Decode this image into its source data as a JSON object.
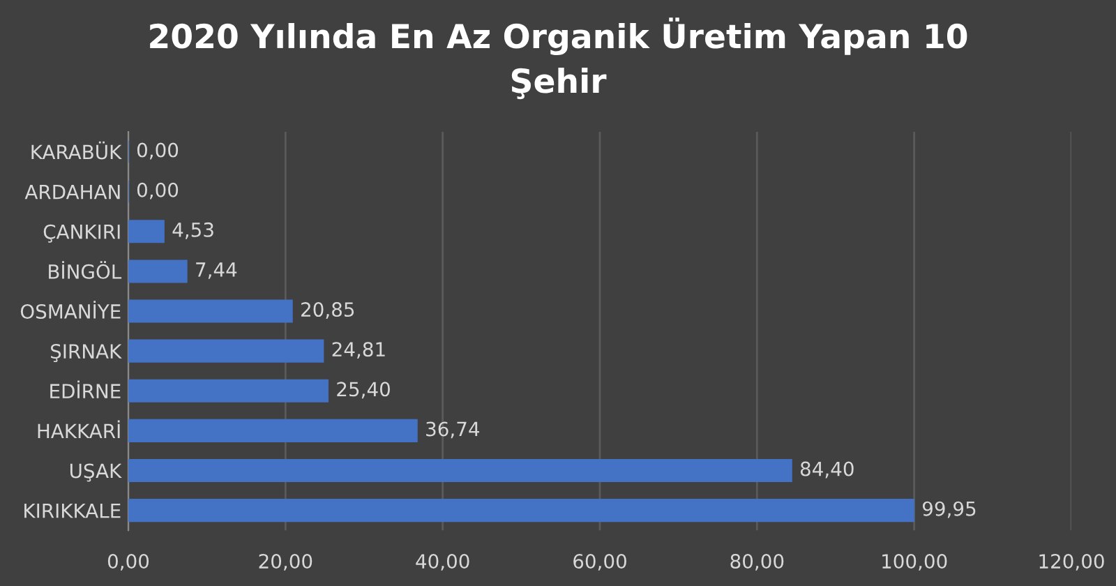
{
  "chart_data": {
    "type": "bar",
    "orientation": "horizontal",
    "title": "2020 Yılında En Az Organik Üretim Yapan 10\nŞehir",
    "categories": [
      "KARABÜK",
      "ARDAHAN",
      "ÇANKIRI",
      "BİNGÖL",
      "OSMANİYE",
      "ŞIRNAK",
      "EDİRNE",
      "HAKKARİ",
      "UŞAK",
      "KIRIKKALE"
    ],
    "values": [
      0.0,
      0.0,
      4.53,
      7.44,
      20.85,
      24.81,
      25.4,
      36.74,
      84.4,
      99.95
    ],
    "value_labels": [
      "0,00",
      "0,00",
      "4,53",
      "7,44",
      "20,85",
      "24,81",
      "25,40",
      "36,74",
      "84,40",
      "99,95"
    ],
    "color": "#4472c4",
    "xlim": [
      0,
      120
    ],
    "xticks": [
      {
        "value": 0,
        "label": "0,00"
      },
      {
        "value": 20,
        "label": "20,00"
      },
      {
        "value": 40,
        "label": "40,00"
      },
      {
        "value": 60,
        "label": "60,00"
      },
      {
        "value": 80,
        "label": "80,00"
      },
      {
        "value": 100,
        "label": "100,00"
      },
      {
        "value": 120,
        "label": "120,00"
      }
    ],
    "grid": "x",
    "legend": false
  }
}
